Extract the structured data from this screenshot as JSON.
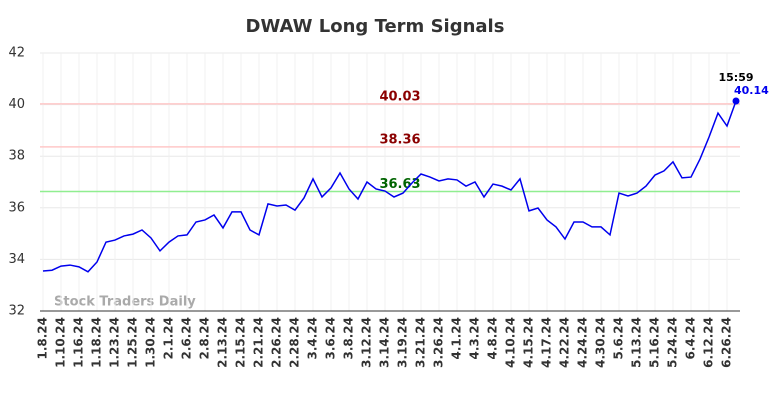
{
  "chart_data": {
    "type": "line",
    "title": "DWAW Long Term Signals",
    "watermark": "Stock Traders Daily",
    "last_time": "15:59",
    "categories": [
      "1.8.24",
      null,
      "1.10.24",
      null,
      "1.16.24",
      null,
      "1.18.24",
      null,
      "1.23.24",
      null,
      "1.25.24",
      null,
      "1.30.24",
      null,
      "2.1.24",
      null,
      "2.6.24",
      null,
      "2.8.24",
      null,
      "2.13.24",
      null,
      "2.15.24",
      null,
      "2.21.24",
      null,
      "2.26.24",
      null,
      "2.28.24",
      null,
      "3.4.24",
      null,
      "3.6.24",
      null,
      "3.8.24",
      null,
      "3.12.24",
      null,
      "3.14.24",
      null,
      "3.19.24",
      null,
      "3.21.24",
      null,
      "3.26.24",
      null,
      "4.1.24",
      null,
      "4.3.24",
      null,
      "4.8.24",
      null,
      "4.10.24",
      null,
      "4.15.24",
      null,
      "4.17.24",
      null,
      "4.22.24",
      null,
      "4.24.24",
      null,
      "4.30.24",
      null,
      "5.6.24",
      null,
      "5.13.24",
      null,
      "5.16.24",
      null,
      "5.24.24",
      null,
      "6.4.24",
      null,
      "6.12.24",
      null,
      "6.26.24",
      null
    ],
    "values": [
      33.55,
      33.58,
      33.74,
      33.78,
      33.71,
      33.52,
      33.9,
      34.67,
      34.75,
      34.91,
      34.98,
      35.14,
      34.83,
      34.33,
      34.67,
      34.91,
      34.95,
      35.45,
      35.53,
      35.72,
      35.22,
      35.84,
      35.84,
      35.14,
      34.95,
      36.15,
      36.07,
      36.11,
      35.91,
      36.38,
      37.12,
      36.42,
      36.77,
      37.35,
      36.73,
      36.34,
      37.0,
      36.73,
      36.65,
      36.42,
      36.57,
      36.96,
      37.31,
      37.19,
      37.04,
      37.12,
      37.08,
      36.84,
      37.0,
      36.42,
      36.92,
      36.84,
      36.69,
      37.12,
      35.88,
      35.99,
      35.53,
      35.26,
      34.79,
      35.45,
      35.45,
      35.26,
      35.26,
      34.95,
      36.57,
      36.46,
      36.57,
      36.84,
      37.27,
      37.43,
      37.78,
      37.16,
      37.19,
      37.89,
      38.74,
      39.67,
      39.17,
      40.14
    ],
    "color": "#0000ee",
    "hlines": [
      {
        "value": 40.03,
        "color": "#ffc8c8",
        "label_color": "#8b0000"
      },
      {
        "value": 38.36,
        "color": "#ffc8c8",
        "label_color": "#8b0000"
      },
      {
        "value": 36.63,
        "color": "#90ee90",
        "label_color": "#006400"
      }
    ],
    "ylim": [
      32,
      42
    ],
    "yticks": [
      32,
      34,
      36,
      38,
      40,
      42
    ],
    "grid": true
  }
}
